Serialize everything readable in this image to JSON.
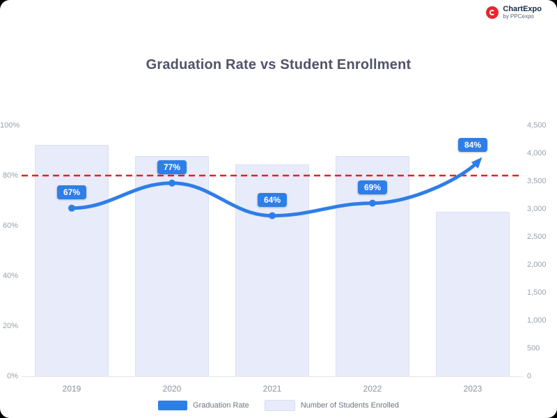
{
  "brand": {
    "name": "ChartExpo",
    "tagline": "by PPCexpo"
  },
  "title": "Graduation Rate vs Student Enrollment",
  "chart_data": {
    "type": "combo",
    "categories": [
      "2019",
      "2020",
      "2021",
      "2022",
      "2023"
    ],
    "series": [
      {
        "name": "Graduation Rate",
        "type": "line",
        "axis": "left",
        "color": "#2e7ee8",
        "values": [
          67,
          77,
          64,
          69,
          84
        ],
        "labels": [
          "67%",
          "77%",
          "64%",
          "69%",
          "84%"
        ]
      },
      {
        "name": "Student Enrollment",
        "type": "bar",
        "axis": "right",
        "color": "#e7ebfa",
        "values": [
          4150,
          3950,
          3800,
          3950,
          2950
        ]
      }
    ],
    "target_line": {
      "value": 80,
      "axis": "left",
      "color": "#ee1c25",
      "style": "dashed"
    },
    "left_axis": {
      "min": 0,
      "max": 100,
      "ticks": [
        "100%",
        "80%",
        "60%",
        "40%",
        "20%",
        "0%"
      ]
    },
    "right_axis": {
      "min": 0,
      "max": 4500,
      "ticks": [
        "4,500",
        "4,000",
        "3,500",
        "3,000",
        "2,500",
        "2,000",
        "1,500",
        "1,000",
        "500",
        "0"
      ]
    },
    "legend": [
      {
        "label": "Graduation Rate",
        "color": "#2e7ee8"
      },
      {
        "label": "Number of Students Enrolled",
        "color": "#e7ebfa"
      }
    ],
    "grid": false,
    "legend_position": "bottom"
  }
}
